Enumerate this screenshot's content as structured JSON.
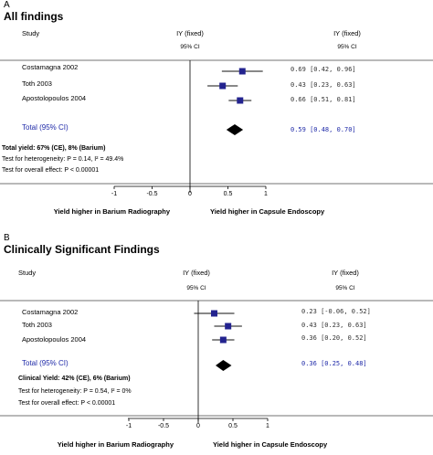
{
  "panels": [
    {
      "letter": "A",
      "title": "All findings",
      "study_header": "Study",
      "iy_header": "IY (fixed)",
      "ci_header": "95% CI",
      "total_label": "Total (95% CI)",
      "yield_line": "Total yield: 67% (CE), 8% (Barium)",
      "heterogeneity": "Test for heterogeneity: P = 0.14, I² = 49.4%",
      "overall_effect": "Test for overall effect: P < 0.00001",
      "ticks": [
        "-1",
        "-0.5",
        "0",
        "0.5",
        "1"
      ],
      "left_label": "Yield higher in Barium Radiography",
      "right_label": "Yield higher in Capsule Endoscopy"
    },
    {
      "letter": "B",
      "title": "Clinically Significant Findings",
      "study_header": "Study",
      "iy_header": "IY (fixed)",
      "ci_header": "95% CI",
      "total_label": "Total (95% CI)",
      "yield_line": "Clinical Yield: 42% (CE), 6% (Barium)",
      "heterogeneity": "Test for heterogeneity: P = 0.54, I² = 0%",
      "overall_effect": "Test for overall effect: P < 0.00001",
      "ticks": [
        "-1",
        "-0.5",
        "0",
        "0.5",
        "1"
      ],
      "left_label": "Yield higher in Barium Radiography",
      "right_label": "Yield higher in Capsule Endoscopy"
    }
  ],
  "chart_data": [
    {
      "type": "forest",
      "xlim": [
        -1,
        1
      ],
      "studies": [
        {
          "name": "Costamagna 2002",
          "estimate": 0.69,
          "lower": 0.42,
          "upper": 0.96,
          "ci_text": "0.69 [0.42, 0.96]"
        },
        {
          "name": "Toth 2003",
          "estimate": 0.43,
          "lower": 0.23,
          "upper": 0.63,
          "ci_text": "0.43 [0.23, 0.63]"
        },
        {
          "name": "Apostolopoulos 2004",
          "estimate": 0.66,
          "lower": 0.51,
          "upper": 0.81,
          "ci_text": "0.66 [0.51, 0.81]"
        }
      ],
      "total": {
        "estimate": 0.59,
        "lower": 0.48,
        "upper": 0.7,
        "ci_text": "0.59 [0.48, 0.70]"
      }
    },
    {
      "type": "forest",
      "xlim": [
        -1,
        1
      ],
      "studies": [
        {
          "name": "Costamagna 2002",
          "estimate": 0.23,
          "lower": -0.06,
          "upper": 0.52,
          "ci_text": "0.23 [-0.06, 0.52]"
        },
        {
          "name": "Toth 2003",
          "estimate": 0.43,
          "lower": 0.23,
          "upper": 0.63,
          "ci_text": "0.43 [0.23, 0.63]"
        },
        {
          "name": "Apostolopoulos 2004",
          "estimate": 0.36,
          "lower": 0.2,
          "upper": 0.52,
          "ci_text": "0.36 [0.20, 0.52]"
        }
      ],
      "total": {
        "estimate": 0.36,
        "lower": 0.25,
        "upper": 0.48,
        "ci_text": "0.36 [0.25, 0.48]"
      }
    }
  ]
}
